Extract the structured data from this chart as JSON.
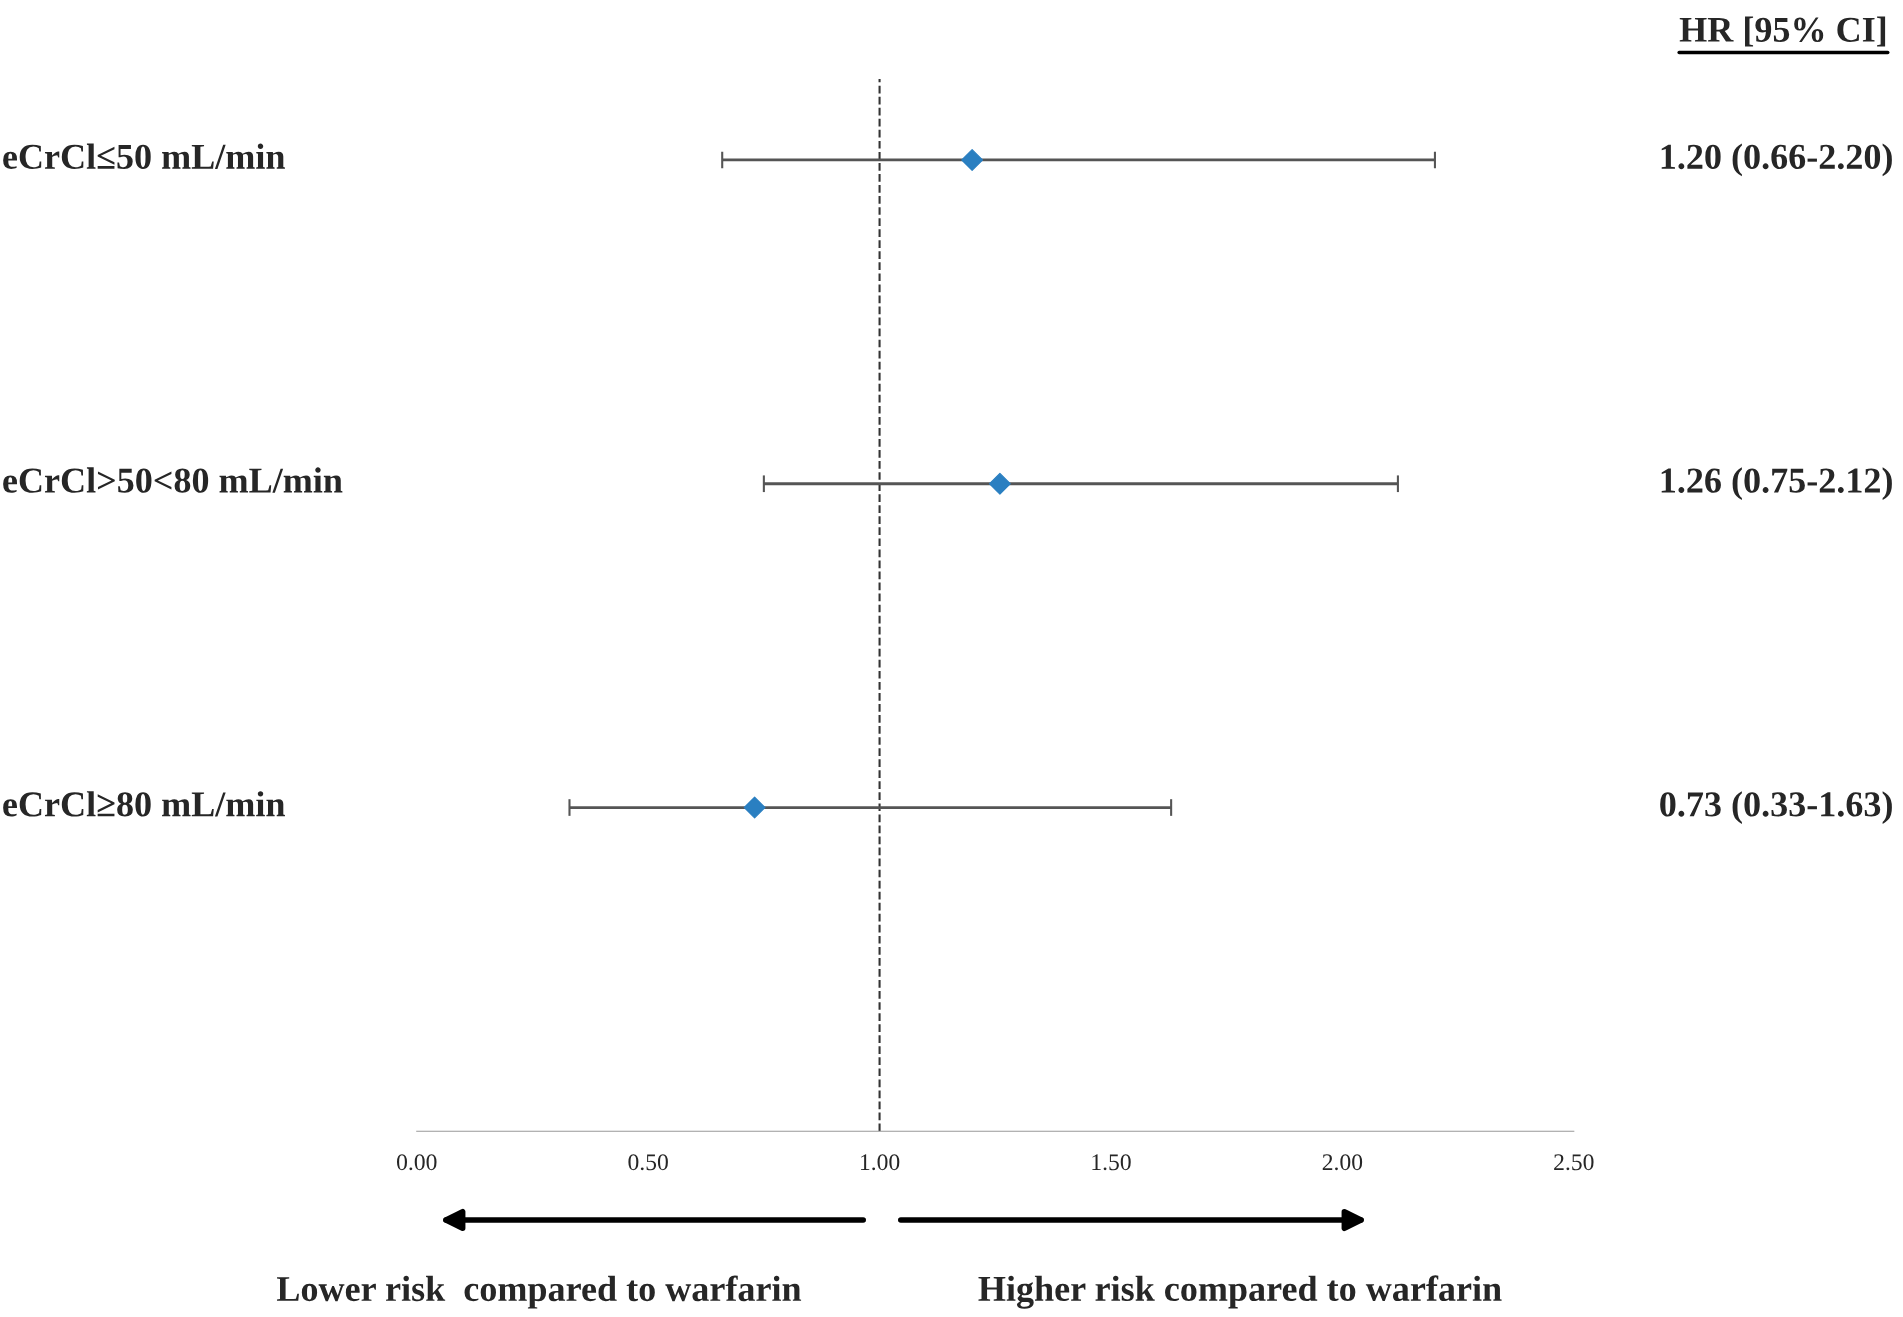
{
  "chart_data": {
    "type": "scatter",
    "orientation": "horizontal",
    "categories": [
      "eCrCl≤50 mL/min",
      "eCrCl>50<80 mL/min",
      "eCrCl≥80 mL/min"
    ],
    "values": [
      1.2,
      1.26,
      0.73
    ],
    "errors": [
      [
        0.66,
        2.2
      ],
      [
        0.75,
        2.12
      ],
      [
        0.33,
        1.63
      ]
    ],
    "value_labels": [
      "1.20 (0.66-2.20)",
      "1.26 (0.75-2.12)",
      "0.73 (0.33-1.63)"
    ],
    "color": "#2a7fc1",
    "marker": "diamond",
    "xlim": [
      0,
      2.5
    ],
    "xticks": [
      {
        "value": 0,
        "label": "0.00"
      },
      {
        "value": 0.5,
        "label": "0.50"
      },
      {
        "value": 1,
        "label": "1.00"
      },
      {
        "value": 1.5,
        "label": "1.50"
      },
      {
        "value": 2,
        "label": "2.00"
      },
      {
        "value": 2.5,
        "label": "2.50"
      }
    ],
    "ref_lines": [
      {
        "axis": "x",
        "value": 1,
        "line_style": "dashed",
        "color": "#333333"
      }
    ],
    "grid": false,
    "annotations": [
      "HR [95% CI]",
      "Lower risk  compared to warfarin",
      "Higher risk compared to warfarin"
    ]
  }
}
